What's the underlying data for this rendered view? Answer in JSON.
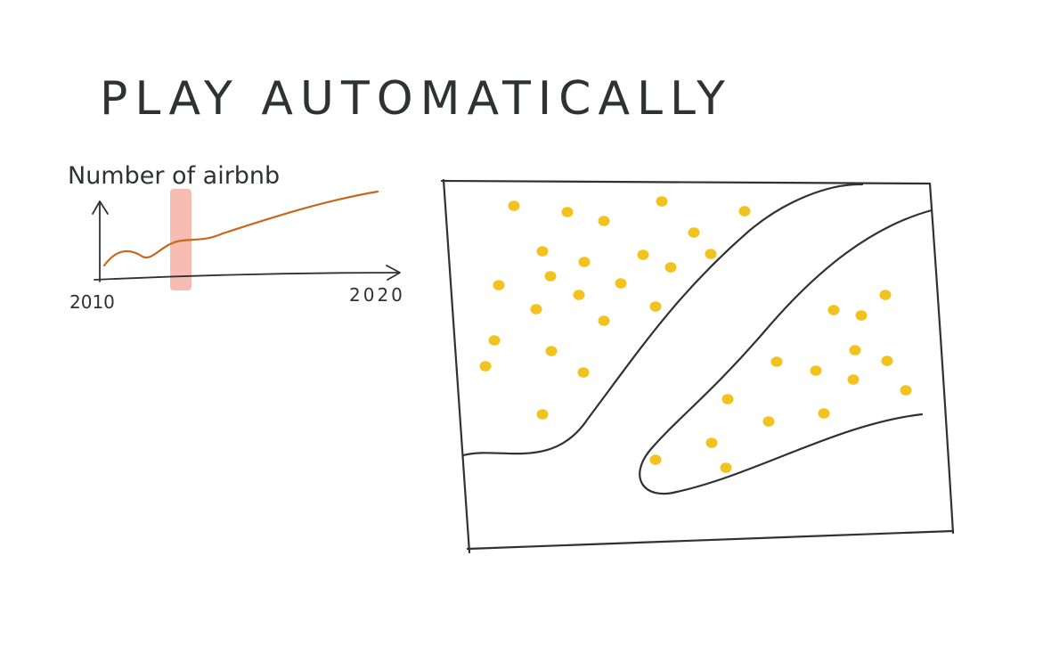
{
  "heading": "PLAY AUTOMATICALLY",
  "mini_chart": {
    "ylabel": "Number of airbnb",
    "x_start_label": "2010",
    "x_end_label": "2020",
    "colors": {
      "line": "#c8681c",
      "highlight": "#f4a79a",
      "ink": "#2f3133"
    }
  },
  "map": {
    "dot_color": "#f2c31e",
    "ink_color": "#2f3133"
  }
}
